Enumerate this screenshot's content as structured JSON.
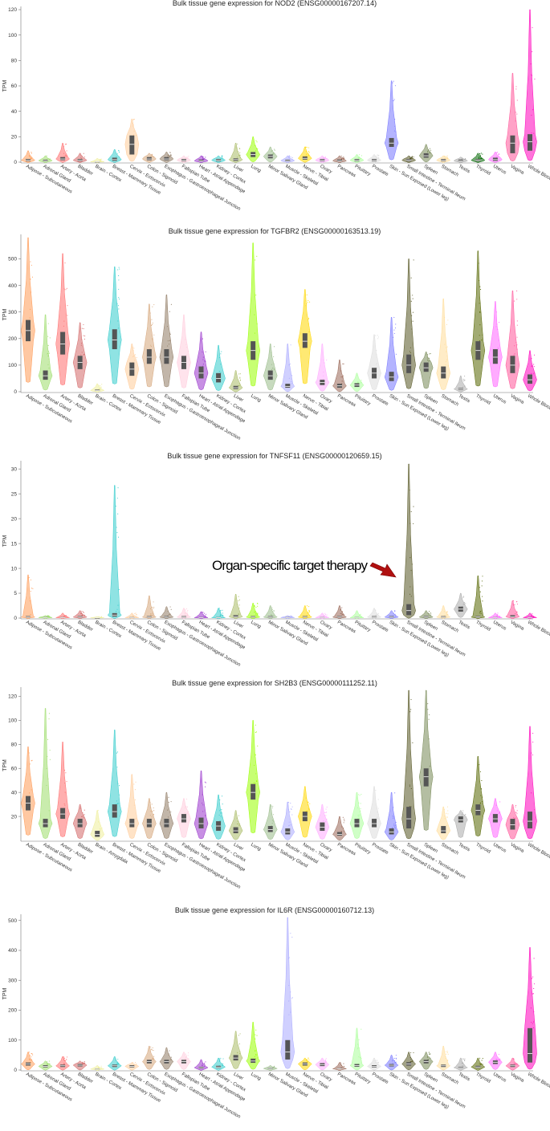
{
  "chart_data": [
    {
      "type": "violin",
      "title": "Bulk tissue gene expression for NOD2 (ENSG00000167207.14)",
      "ylabel": "TPM",
      "ylim": [
        0,
        120
      ],
      "yticks": [
        0,
        20,
        40,
        60,
        80,
        100,
        120
      ],
      "categories": [
        "Adipose - Subcutaneous",
        "Adrenal Gland",
        "Artery - Aorta",
        "Bladder",
        "Brain - Cortex",
        "Breast - Mammary Tissue",
        "Cervix - Ectocervix",
        "Colon - Sigmoid",
        "Esophagus - Gastroesophageal Junction",
        "Fallopian Tube",
        "Heart - Atrial Appendage",
        "Kidney - Cortex",
        "Liver",
        "Lung",
        "Minor Salivary Gland",
        "Muscle - Skeletal",
        "Nerve - Tibial",
        "Ovary",
        "Pancreas",
        "Pituitary",
        "Prostate",
        "Skin - Sun Exposed (Lower leg)",
        "Small Intestine - Terminal Ileum",
        "Spleen",
        "Stomach",
        "Testis",
        "Thyroid",
        "Uterus",
        "Vagina",
        "Whole Blood"
      ],
      "colors": [
        "#ff9a55",
        "#9cdd6a",
        "#ff6e6e",
        "#d46868",
        "#eeee99",
        "#33cccc",
        "#ffcc99",
        "#d6a67a",
        "#8f7a63",
        "#ffccdd",
        "#9933cc",
        "#33cccc",
        "#aabb66",
        "#99ff00",
        "#99bb88",
        "#aaaaff",
        "#ffd700",
        "#ffaaff",
        "#996655",
        "#aaff99",
        "#dddddd",
        "#7777ff",
        "#555522",
        "#778855",
        "#ffdd99",
        "#aaaaaa",
        "#006600",
        "#ff66ff",
        "#ff5599",
        "#ff00bb"
      ],
      "medians": [
        1.5,
        1.2,
        2.5,
        1.5,
        0.3,
        2,
        14,
        2.5,
        2.5,
        1.5,
        1,
        1.5,
        2,
        6,
        4.5,
        1.2,
        3,
        1.5,
        1,
        1.5,
        1.5,
        15,
        1.5,
        5,
        1.5,
        1,
        1.5,
        2,
        15,
        16
      ],
      "q1": [
        0.8,
        0.6,
        1.5,
        0.8,
        0.1,
        1,
        6,
        1.5,
        1.5,
        0.8,
        0.5,
        0.8,
        1,
        4,
        3,
        0.6,
        2,
        0.8,
        0.5,
        0.8,
        0.8,
        12,
        0.8,
        3.5,
        0.8,
        0.5,
        0.8,
        1,
        7,
        9
      ],
      "q3": [
        2.5,
        2,
        4,
        2.5,
        0.6,
        3.5,
        21,
        4,
        4,
        2.5,
        2,
        2.5,
        3,
        8,
        6,
        2,
        4.5,
        2.5,
        2,
        2.5,
        2.5,
        19,
        2.5,
        7,
        2.5,
        2,
        2.5,
        3.5,
        21,
        22
      ],
      "max": [
        9,
        5,
        15,
        7,
        3,
        10,
        34,
        7,
        8,
        5,
        5,
        5,
        15,
        20,
        12,
        5,
        12,
        5,
        5,
        6,
        6,
        64,
        5,
        14,
        5,
        4,
        7,
        8,
        70,
        120
      ]
    },
    {
      "type": "violin",
      "title": "Bulk tissue gene expression for TGFBR2 (ENSG00000163513.19)",
      "ylabel": "TPM",
      "ylim": [
        0,
        580
      ],
      "yticks": [
        0,
        100,
        200,
        300,
        400,
        500
      ],
      "categories": [
        "Adipose - Subcutaneous",
        "Adrenal Gland",
        "Artery - Aorta",
        "Bladder",
        "Brain - Cortex",
        "Breast - Mammary Tissue",
        "Cervix - Ectocervix",
        "Colon - Sigmoid",
        "Esophagus - Gastroesophageal Junction",
        "Fallopian Tube",
        "Heart - Atrial Appendage",
        "Kidney - Cortex",
        "Liver",
        "Lung",
        "Minor Salivary Gland",
        "Muscle - Skeletal",
        "Nerve - Tibial",
        "Ovary",
        "Pancreas",
        "Pituitary",
        "Prostate",
        "Skin - Sun Exposed (Lower leg)",
        "Small Intestine - Terminal Ileum",
        "Spleen",
        "Stomach",
        "Testis",
        "Thyroid",
        "Uterus",
        "Vagina",
        "Whole Blood"
      ],
      "colors": [
        "#ff9a55",
        "#9cdd6a",
        "#ff6e6e",
        "#d46868",
        "#eeee99",
        "#33cccc",
        "#ffcc99",
        "#d6a67a",
        "#8f7a63",
        "#ffccdd",
        "#9933cc",
        "#33cccc",
        "#aabb66",
        "#99ff00",
        "#99bb88",
        "#aaaaff",
        "#ffd700",
        "#ffaaff",
        "#996655",
        "#aaff99",
        "#dddddd",
        "#7777ff",
        "#555522",
        "#778855",
        "#ffdd99",
        "#aaaaaa",
        "#556600",
        "#ff66ff",
        "#ff5599",
        "#ff00bb"
      ],
      "medians": [
        230,
        60,
        180,
        110,
        5,
        195,
        85,
        130,
        130,
        110,
        70,
        50,
        15,
        155,
        60,
        20,
        190,
        35,
        22,
        25,
        70,
        55,
        100,
        90,
        70,
        10,
        155,
        130,
        100,
        45
      ],
      "q1": [
        190,
        45,
        140,
        85,
        3,
        160,
        60,
        105,
        105,
        85,
        50,
        35,
        10,
        120,
        45,
        15,
        165,
        25,
        15,
        18,
        50,
        40,
        70,
        75,
        50,
        7,
        120,
        105,
        70,
        30
      ],
      "q3": [
        270,
        80,
        225,
        135,
        8,
        235,
        110,
        160,
        160,
        135,
        95,
        70,
        22,
        190,
        80,
        30,
        220,
        45,
        30,
        32,
        90,
        75,
        140,
        110,
        95,
        14,
        190,
        160,
        135,
        65
      ],
      "max": [
        580,
        290,
        520,
        260,
        30,
        470,
        180,
        330,
        365,
        290,
        225,
        175,
        80,
        560,
        180,
        180,
        385,
        180,
        120,
        70,
        215,
        280,
        500,
        150,
        350,
        60,
        530,
        340,
        380,
        155
      ]
    },
    {
      "type": "violin",
      "title": "Bulk tissue gene expression for TNFSF11 (ENSG00000120659.15)",
      "ylabel": "TPM",
      "ylim": [
        0,
        31
      ],
      "yticks": [
        0,
        5,
        10,
        15,
        20,
        25,
        30
      ],
      "categories": [
        "Adipose - Subcutaneous",
        "Adrenal Gland",
        "Artery - Aorta",
        "Bladder",
        "Brain - Cortex",
        "Breast - Mammary Tissue",
        "Cervix - Ectocervix",
        "Colon - Sigmoid",
        "Esophagus - Gastroesophageal Junction",
        "Fallopian Tube",
        "Heart - Atrial Appendage",
        "Kidney - Cortex",
        "Liver",
        "Lung",
        "Minor Salivary Gland",
        "Muscle - Skeletal",
        "Nerve - Tibial",
        "Ovary",
        "Pancreas",
        "Pituitary",
        "Prostate",
        "Skin - Sun Exposed (Lower leg)",
        "Small Intestine - Terminal Ileum",
        "Spleen",
        "Stomach",
        "Testis",
        "Thyroid",
        "Uterus",
        "Vagina",
        "Whole Blood"
      ],
      "colors": [
        "#ff9a55",
        "#9cdd6a",
        "#ff6e6e",
        "#d46868",
        "#eeee99",
        "#33cccc",
        "#ffcc99",
        "#d6a67a",
        "#8f7a63",
        "#ffccdd",
        "#9933cc",
        "#33cccc",
        "#aabb66",
        "#99ff00",
        "#99bb88",
        "#aaaaff",
        "#ffd700",
        "#ffaaff",
        "#996655",
        "#aaff99",
        "#dddddd",
        "#7777ff",
        "#555522",
        "#778855",
        "#ffdd99",
        "#aaaaaa",
        "#556600",
        "#ff66ff",
        "#ff5599",
        "#ff00bb"
      ],
      "medians": [
        0.2,
        0.1,
        0.1,
        0.2,
        0.05,
        0.6,
        0.1,
        0.2,
        0.2,
        0.2,
        0.1,
        0.1,
        0.3,
        0.2,
        0.2,
        0.1,
        0.2,
        0.1,
        0.2,
        0.1,
        0.2,
        0.2,
        1.5,
        0.2,
        0.2,
        1.8,
        0.2,
        0.1,
        0.3,
        0.1
      ],
      "q1": [
        0.1,
        0.05,
        0.05,
        0.1,
        0.02,
        0.3,
        0.05,
        0.1,
        0.1,
        0.1,
        0.05,
        0.05,
        0.15,
        0.1,
        0.1,
        0.05,
        0.1,
        0.05,
        0.1,
        0.05,
        0.1,
        0.1,
        0.6,
        0.1,
        0.1,
        1.3,
        0.1,
        0.05,
        0.15,
        0.05
      ],
      "q3": [
        0.4,
        0.2,
        0.2,
        0.4,
        0.1,
        1,
        0.2,
        0.4,
        0.4,
        0.4,
        0.2,
        0.2,
        0.6,
        0.4,
        0.4,
        0.2,
        0.4,
        0.2,
        0.4,
        0.2,
        0.4,
        0.4,
        2.8,
        0.4,
        0.4,
        2.3,
        0.4,
        0.2,
        0.6,
        0.2
      ],
      "max": [
        8.7,
        0.5,
        1,
        1.5,
        0.3,
        26.7,
        1,
        4.5,
        2.3,
        2,
        1.3,
        2,
        4.8,
        3,
        2.5,
        0.5,
        2.5,
        1,
        2.5,
        1.5,
        2,
        1.5,
        31.5,
        1.5,
        2.5,
        5,
        8.5,
        1,
        3.5,
        1
      ]
    },
    {
      "type": "violin",
      "title": "Bulk tissue gene expression for SH2B3 (ENSG00000111252.11)",
      "ylabel": "TPM",
      "ylim": [
        0,
        125
      ],
      "yticks": [
        20,
        40,
        60,
        80,
        100,
        120
      ],
      "categories": [
        "Adipose - Subcutaneous",
        "Adrenal Gland",
        "Artery - Aorta",
        "Bladder",
        "Brain - Amygdala",
        "Breast - Mammary Tissue",
        "Cervix - Ectocervix",
        "Colon - Sigmoid",
        "Esophagus - Gastroesophageal Junction",
        "Fallopian Tube",
        "Heart - Atrial Appendage",
        "Kidney - Cortex",
        "Liver",
        "Lung",
        "Minor Salivary Gland",
        "Muscle - Skeletal",
        "Nerve - Tibial",
        "Ovary",
        "Pancreas",
        "Pituitary",
        "Prostate",
        "Skin - Sun Exposed (Lower leg)",
        "Small Intestine - Terminal Ileum",
        "Spleen",
        "Stomach",
        "Testis",
        "Thyroid",
        "Uterus",
        "Vagina",
        "Whole Blood"
      ],
      "colors": [
        "#ff9a55",
        "#9cdd6a",
        "#ff6e6e",
        "#d46868",
        "#eeee99",
        "#33cccc",
        "#ffcc99",
        "#d6a67a",
        "#8f7a63",
        "#ffccdd",
        "#9933cc",
        "#33cccc",
        "#aabb66",
        "#99ff00",
        "#99bb88",
        "#aaaaff",
        "#ffd700",
        "#ffaaff",
        "#996655",
        "#aaff99",
        "#dddddd",
        "#7777ff",
        "#555522",
        "#778855",
        "#ffdd99",
        "#aaaaaa",
        "#556600",
        "#ff66ff",
        "#ff5599",
        "#ff00bb"
      ],
      "medians": [
        31,
        14,
        22,
        14,
        5,
        24,
        14,
        14,
        14,
        18,
        14,
        12,
        8,
        40,
        9,
        7,
        20,
        11,
        5,
        14,
        14,
        7,
        18,
        53,
        8,
        17,
        25,
        18,
        13,
        16
      ],
      "q1": [
        25,
        11,
        18,
        11,
        3,
        19,
        11,
        11,
        11,
        15,
        10,
        8,
        6,
        34,
        7,
        5,
        16,
        8,
        4,
        11,
        11,
        5,
        10,
        45,
        6,
        15,
        21,
        15,
        9,
        10
      ],
      "q3": [
        37,
        18,
        27,
        18,
        8,
        30,
        18,
        18,
        18,
        22,
        19,
        16,
        11,
        47,
        12,
        10,
        24,
        15,
        7,
        18,
        18,
        10,
        28,
        60,
        12,
        20,
        30,
        22,
        18,
        24
      ],
      "max": [
        78,
        110,
        82,
        30,
        25,
        92,
        55,
        35,
        40,
        35,
        58,
        38,
        25,
        100,
        30,
        32,
        45,
        30,
        20,
        40,
        45,
        40,
        125,
        125,
        28,
        25,
        70,
        35,
        30,
        95
      ]
    },
    {
      "type": "violin",
      "title": "Bulk tissue gene expression for IL6R (ENSG00000160712.13)",
      "ylabel": "TPM",
      "ylim": [
        0,
        510
      ],
      "yticks": [
        0,
        100,
        200,
        300,
        400,
        500
      ],
      "categories": [
        "Adipose - Subcutaneous",
        "Adrenal Gland",
        "Artery - Aorta",
        "Bladder",
        "Brain - Cortex",
        "Breast - Mammary Tissue",
        "Cervix - Ectocervix",
        "Colon - Sigmoid",
        "Esophagus - Gastroesophageal Junction",
        "Fallopian Tube",
        "Heart - Atrial Appendage",
        "Kidney - Cortex",
        "Liver",
        "Lung",
        "Minor Salivary Gland",
        "Muscle - Skeletal",
        "Nerve - Tibial",
        "Ovary",
        "Pancreas",
        "Pituitary",
        "Prostate",
        "Skin - Sun Exposed (Lower leg)",
        "Small Intestine - Terminal Ileum",
        "Spleen",
        "Stomach",
        "Testis",
        "Thyroid",
        "Uterus",
        "Vagina",
        "Whole Blood"
      ],
      "colors": [
        "#ff9a55",
        "#9cdd6a",
        "#ff6e6e",
        "#d46868",
        "#eeee99",
        "#33cccc",
        "#ffcc99",
        "#d6a67a",
        "#8f7a63",
        "#ffccdd",
        "#9933cc",
        "#33cccc",
        "#aabb66",
        "#99ff00",
        "#99bb88",
        "#aaaaff",
        "#ffd700",
        "#ffaaff",
        "#996655",
        "#aaff99",
        "#dddddd",
        "#7777ff",
        "#555522",
        "#778855",
        "#ffdd99",
        "#aaaaaa",
        "#556600",
        "#ff66ff",
        "#ff5599",
        "#ff00bb"
      ],
      "medians": [
        20,
        12,
        14,
        16,
        3,
        14,
        12,
        28,
        28,
        28,
        8,
        10,
        40,
        30,
        5,
        60,
        20,
        18,
        4,
        15,
        12,
        16,
        20,
        28,
        14,
        8,
        10,
        26,
        14,
        55
      ],
      "q1": [
        15,
        9,
        10,
        12,
        2,
        10,
        9,
        22,
        22,
        22,
        5,
        7,
        32,
        24,
        3,
        35,
        15,
        13,
        3,
        11,
        9,
        12,
        15,
        22,
        10,
        6,
        7,
        20,
        10,
        25
      ],
      "q3": [
        25,
        16,
        18,
        20,
        5,
        18,
        16,
        34,
        34,
        34,
        11,
        14,
        50,
        38,
        7,
        100,
        25,
        23,
        6,
        20,
        16,
        20,
        26,
        34,
        18,
        11,
        14,
        32,
        18,
        140
      ],
      "max": [
        60,
        30,
        45,
        30,
        15,
        45,
        25,
        80,
        75,
        60,
        35,
        40,
        130,
        160,
        15,
        510,
        40,
        40,
        25,
        140,
        40,
        50,
        60,
        60,
        80,
        40,
        40,
        60,
        40,
        410
      ]
    }
  ],
  "annotation": {
    "text": "Organ-specific target therapy",
    "arrow_color": "#b01010",
    "target_chart": 2,
    "target_category": "Small Intestine - Terminal Ileum"
  }
}
